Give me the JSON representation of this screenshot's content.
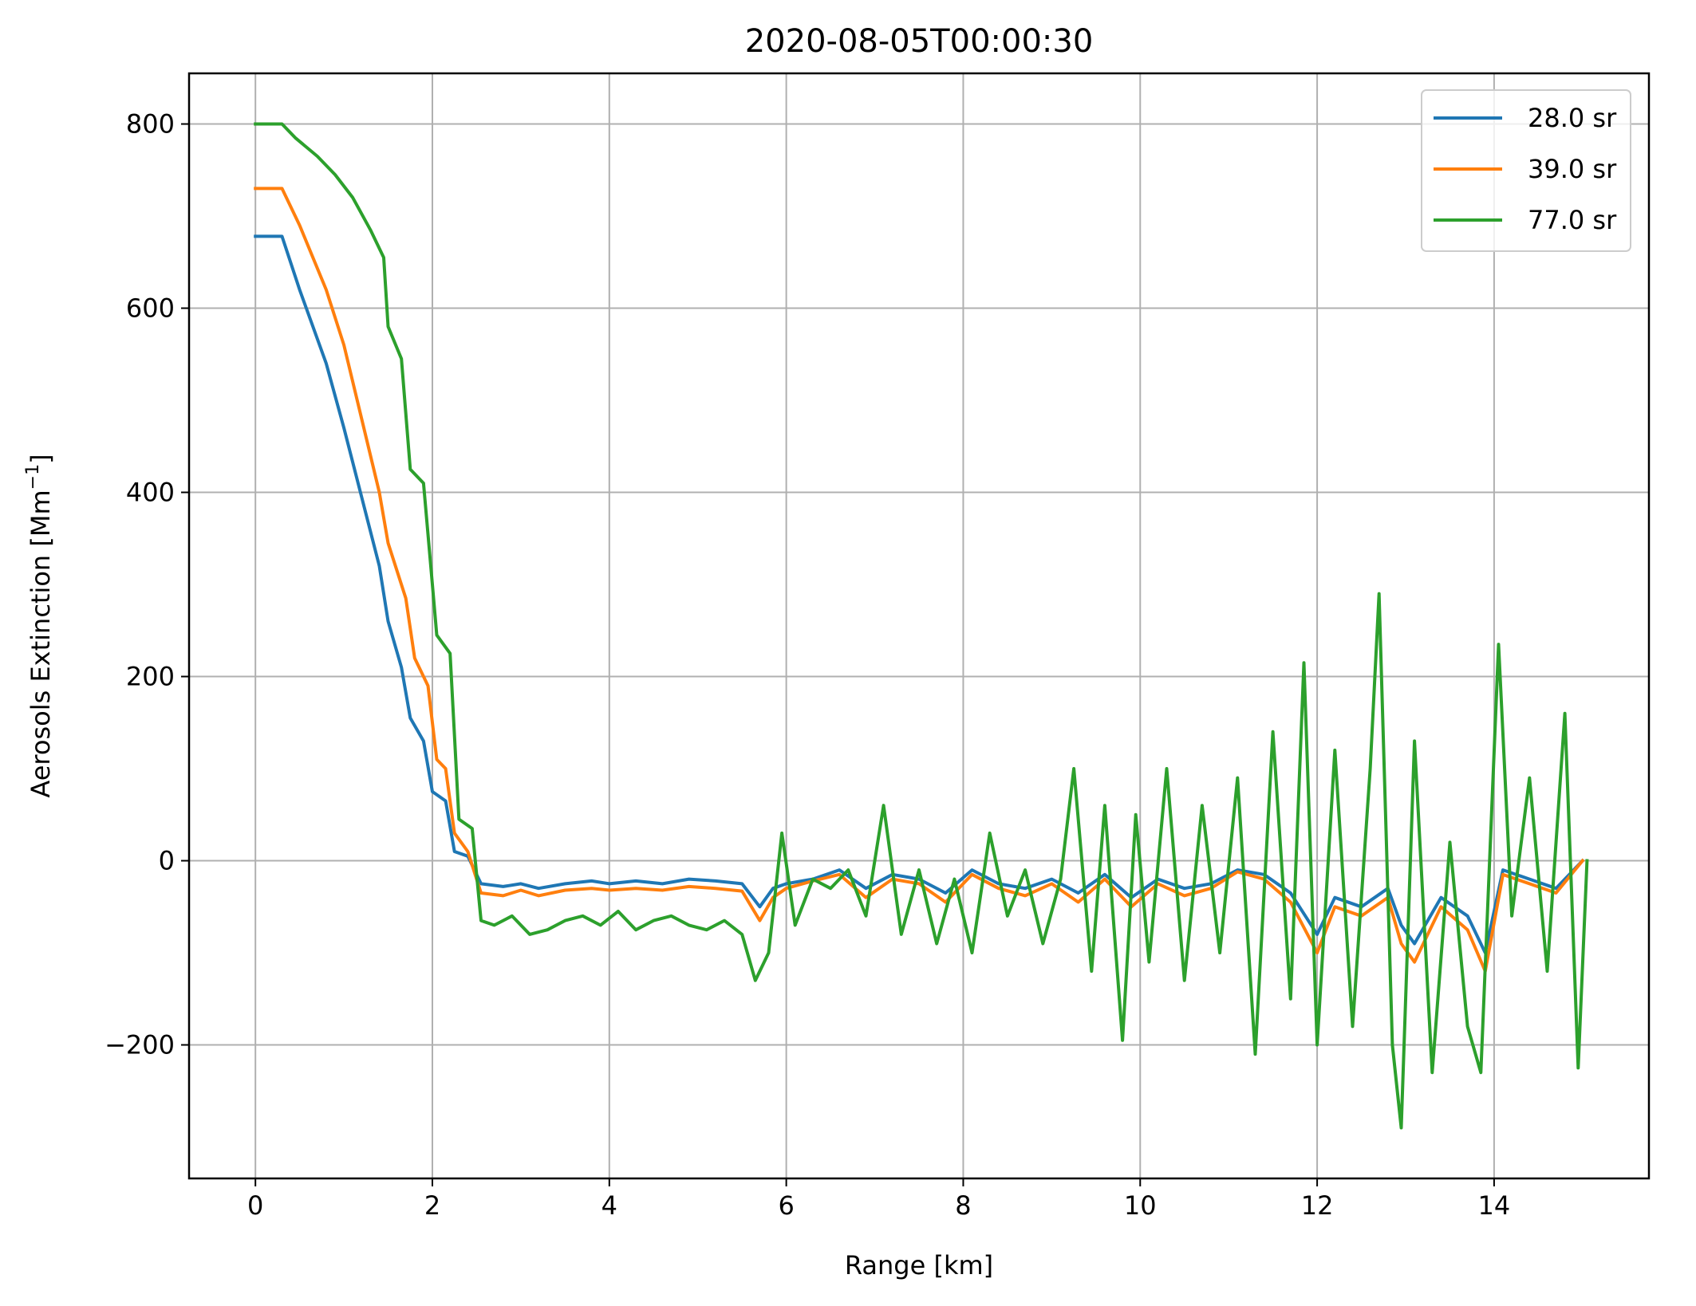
{
  "chart_data": {
    "type": "line",
    "title": "2020-08-05T00:00:30",
    "xlabel": "Range [km]",
    "ylabel": "Aerosols Extinction [Mm",
    "ylabel_sup": "−1",
    "ylabel_end": "]",
    "xlim": [
      -0.75,
      15.75
    ],
    "ylim": [
      -345,
      855
    ],
    "xticks": [
      0,
      2,
      4,
      6,
      8,
      10,
      12,
      14
    ],
    "xtick_labels": [
      "0",
      "2",
      "4",
      "6",
      "8",
      "10",
      "12",
      "14"
    ],
    "yticks": [
      -200,
      0,
      200,
      400,
      600,
      800
    ],
    "ytick_labels": [
      "−200",
      "0",
      "200",
      "400",
      "600",
      "800"
    ],
    "grid": true,
    "legend_position": "upper right",
    "series": [
      {
        "name": "28.0 sr",
        "color": "#1f77b4",
        "points": [
          [
            0,
            678
          ],
          [
            0.3,
            678
          ],
          [
            0.5,
            620
          ],
          [
            0.8,
            540
          ],
          [
            1.0,
            470
          ],
          [
            1.2,
            395
          ],
          [
            1.4,
            320
          ],
          [
            1.5,
            260
          ],
          [
            1.65,
            210
          ],
          [
            1.75,
            155
          ],
          [
            1.9,
            130
          ],
          [
            2.0,
            75
          ],
          [
            2.15,
            65
          ],
          [
            2.25,
            10
          ],
          [
            2.4,
            5
          ],
          [
            2.55,
            -25
          ],
          [
            2.8,
            -28
          ],
          [
            3.0,
            -25
          ],
          [
            3.2,
            -30
          ],
          [
            3.5,
            -25
          ],
          [
            3.8,
            -22
          ],
          [
            4.0,
            -25
          ],
          [
            4.3,
            -22
          ],
          [
            4.6,
            -25
          ],
          [
            4.9,
            -20
          ],
          [
            5.2,
            -22
          ],
          [
            5.5,
            -25
          ],
          [
            5.7,
            -50
          ],
          [
            5.85,
            -30
          ],
          [
            6.0,
            -25
          ],
          [
            6.3,
            -20
          ],
          [
            6.6,
            -10
          ],
          [
            6.9,
            -30
          ],
          [
            7.2,
            -15
          ],
          [
            7.5,
            -20
          ],
          [
            7.8,
            -35
          ],
          [
            8.1,
            -10
          ],
          [
            8.4,
            -25
          ],
          [
            8.7,
            -30
          ],
          [
            9.0,
            -20
          ],
          [
            9.3,
            -35
          ],
          [
            9.6,
            -15
          ],
          [
            9.9,
            -40
          ],
          [
            10.2,
            -20
          ],
          [
            10.5,
            -30
          ],
          [
            10.8,
            -25
          ],
          [
            11.1,
            -10
          ],
          [
            11.4,
            -15
          ],
          [
            11.7,
            -35
          ],
          [
            12.0,
            -80
          ],
          [
            12.2,
            -40
          ],
          [
            12.5,
            -50
          ],
          [
            12.8,
            -30
          ],
          [
            12.95,
            -70
          ],
          [
            13.1,
            -90
          ],
          [
            13.4,
            -40
          ],
          [
            13.7,
            -60
          ],
          [
            13.9,
            -100
          ],
          [
            14.1,
            -10
          ],
          [
            14.4,
            -20
          ],
          [
            14.7,
            -30
          ],
          [
            15.0,
            0
          ]
        ]
      },
      {
        "name": "39.0 sr",
        "color": "#ff7f0e",
        "points": [
          [
            0,
            730
          ],
          [
            0.3,
            730
          ],
          [
            0.5,
            690
          ],
          [
            0.8,
            620
          ],
          [
            1.0,
            560
          ],
          [
            1.2,
            480
          ],
          [
            1.4,
            400
          ],
          [
            1.5,
            345
          ],
          [
            1.7,
            285
          ],
          [
            1.8,
            220
          ],
          [
            1.95,
            190
          ],
          [
            2.05,
            110
          ],
          [
            2.15,
            100
          ],
          [
            2.25,
            30
          ],
          [
            2.4,
            10
          ],
          [
            2.55,
            -35
          ],
          [
            2.8,
            -38
          ],
          [
            3.0,
            -32
          ],
          [
            3.2,
            -38
          ],
          [
            3.5,
            -32
          ],
          [
            3.8,
            -30
          ],
          [
            4.0,
            -32
          ],
          [
            4.3,
            -30
          ],
          [
            4.6,
            -32
          ],
          [
            4.9,
            -28
          ],
          [
            5.2,
            -30
          ],
          [
            5.5,
            -33
          ],
          [
            5.7,
            -65
          ],
          [
            5.85,
            -40
          ],
          [
            6.0,
            -30
          ],
          [
            6.3,
            -22
          ],
          [
            6.6,
            -15
          ],
          [
            6.9,
            -40
          ],
          [
            7.2,
            -20
          ],
          [
            7.5,
            -25
          ],
          [
            7.8,
            -45
          ],
          [
            8.1,
            -15
          ],
          [
            8.4,
            -30
          ],
          [
            8.7,
            -38
          ],
          [
            9.0,
            -25
          ],
          [
            9.3,
            -45
          ],
          [
            9.6,
            -20
          ],
          [
            9.9,
            -50
          ],
          [
            10.2,
            -25
          ],
          [
            10.5,
            -38
          ],
          [
            10.8,
            -30
          ],
          [
            11.1,
            -12
          ],
          [
            11.4,
            -20
          ],
          [
            11.7,
            -45
          ],
          [
            12.0,
            -100
          ],
          [
            12.2,
            -50
          ],
          [
            12.5,
            -60
          ],
          [
            12.8,
            -40
          ],
          [
            12.95,
            -90
          ],
          [
            13.1,
            -110
          ],
          [
            13.4,
            -50
          ],
          [
            13.7,
            -75
          ],
          [
            13.9,
            -120
          ],
          [
            14.1,
            -15
          ],
          [
            14.4,
            -25
          ],
          [
            14.7,
            -35
          ],
          [
            15.0,
            0
          ]
        ]
      },
      {
        "name": "77.0 sr",
        "color": "#2ca02c",
        "points": [
          [
            0,
            800
          ],
          [
            0.3,
            800
          ],
          [
            0.45,
            785
          ],
          [
            0.7,
            765
          ],
          [
            0.9,
            745
          ],
          [
            1.1,
            720
          ],
          [
            1.3,
            685
          ],
          [
            1.45,
            655
          ],
          [
            1.5,
            580
          ],
          [
            1.65,
            545
          ],
          [
            1.75,
            425
          ],
          [
            1.9,
            410
          ],
          [
            2.0,
            300
          ],
          [
            2.05,
            245
          ],
          [
            2.2,
            225
          ],
          [
            2.3,
            45
          ],
          [
            2.45,
            35
          ],
          [
            2.55,
            -65
          ],
          [
            2.7,
            -70
          ],
          [
            2.9,
            -60
          ],
          [
            3.1,
            -80
          ],
          [
            3.3,
            -75
          ],
          [
            3.5,
            -65
          ],
          [
            3.7,
            -60
          ],
          [
            3.9,
            -70
          ],
          [
            4.1,
            -55
          ],
          [
            4.3,
            -75
          ],
          [
            4.5,
            -65
          ],
          [
            4.7,
            -60
          ],
          [
            4.9,
            -70
          ],
          [
            5.1,
            -75
          ],
          [
            5.3,
            -65
          ],
          [
            5.5,
            -80
          ],
          [
            5.65,
            -130
          ],
          [
            5.8,
            -100
          ],
          [
            5.95,
            30
          ],
          [
            6.1,
            -70
          ],
          [
            6.3,
            -20
          ],
          [
            6.5,
            -30
          ],
          [
            6.7,
            -10
          ],
          [
            6.9,
            -60
          ],
          [
            7.1,
            60
          ],
          [
            7.3,
            -80
          ],
          [
            7.5,
            -10
          ],
          [
            7.7,
            -90
          ],
          [
            7.9,
            -20
          ],
          [
            8.1,
            -100
          ],
          [
            8.3,
            30
          ],
          [
            8.5,
            -60
          ],
          [
            8.7,
            -10
          ],
          [
            8.9,
            -90
          ],
          [
            9.1,
            -20
          ],
          [
            9.25,
            100
          ],
          [
            9.45,
            -120
          ],
          [
            9.6,
            60
          ],
          [
            9.8,
            -195
          ],
          [
            9.95,
            50
          ],
          [
            10.1,
            -110
          ],
          [
            10.3,
            100
          ],
          [
            10.5,
            -130
          ],
          [
            10.7,
            60
          ],
          [
            10.9,
            -100
          ],
          [
            11.1,
            90
          ],
          [
            11.3,
            -210
          ],
          [
            11.5,
            140
          ],
          [
            11.7,
            -150
          ],
          [
            11.85,
            215
          ],
          [
            12.0,
            -200
          ],
          [
            12.2,
            120
          ],
          [
            12.4,
            -180
          ],
          [
            12.6,
            100
          ],
          [
            12.7,
            290
          ],
          [
            12.85,
            -200
          ],
          [
            12.95,
            -290
          ],
          [
            13.1,
            130
          ],
          [
            13.3,
            -230
          ],
          [
            13.5,
            20
          ],
          [
            13.7,
            -180
          ],
          [
            13.85,
            -230
          ],
          [
            14.05,
            235
          ],
          [
            14.2,
            -60
          ],
          [
            14.4,
            90
          ],
          [
            14.6,
            -120
          ],
          [
            14.8,
            160
          ],
          [
            14.95,
            -225
          ],
          [
            15.05,
            0
          ]
        ]
      }
    ]
  }
}
